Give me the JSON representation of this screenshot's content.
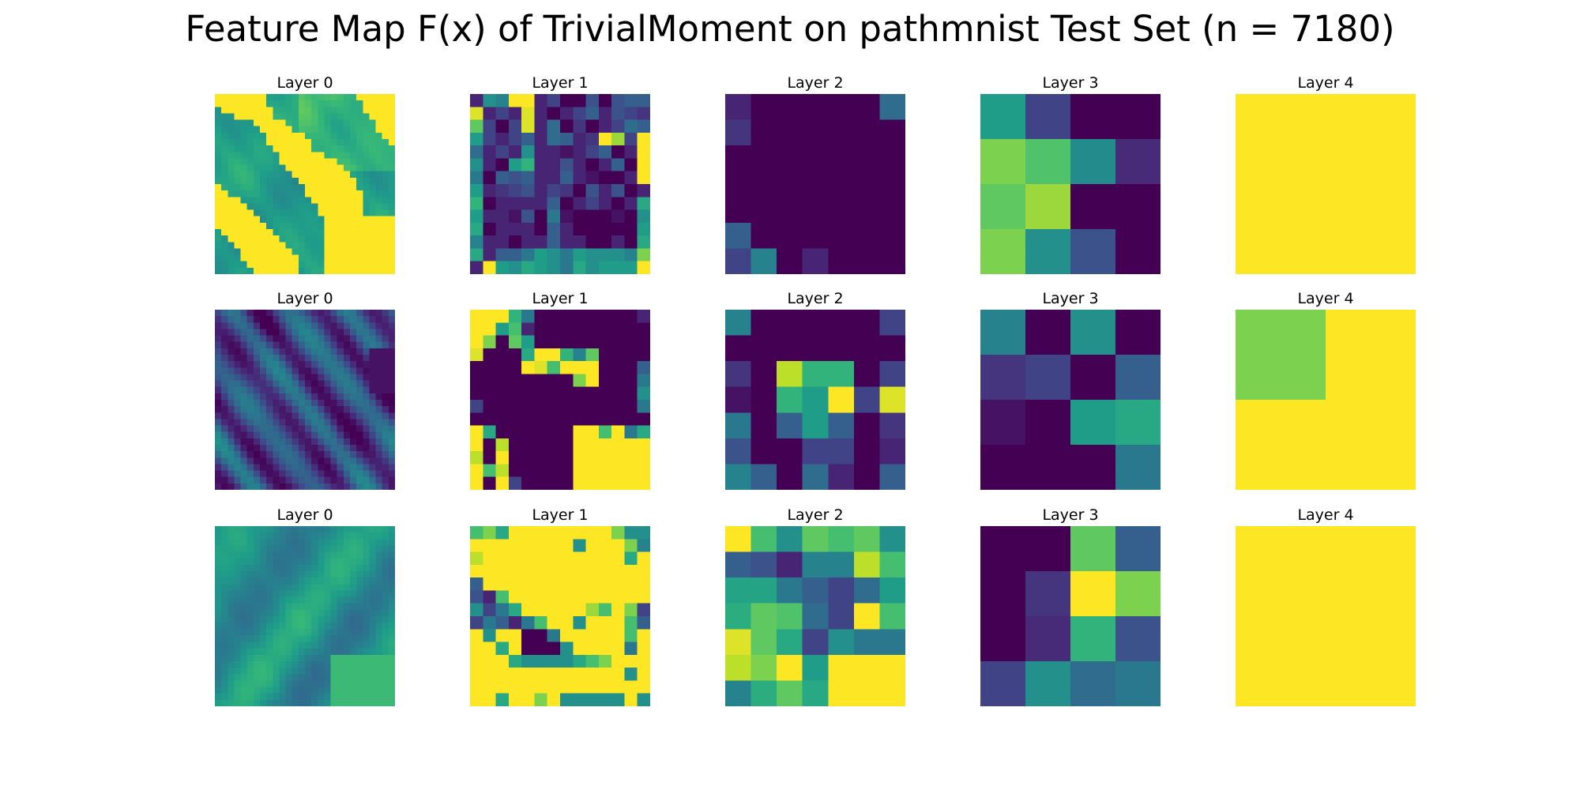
{
  "title": "Feature Map F(x) of TrivialMoment on pathmnist Test Set (n = 7180)",
  "colormap": "viridis",
  "chart_data": {
    "type": "heatmap",
    "title": "Feature Map F(x) of TrivialMoment on pathmnist Test Set (n = 7180)",
    "rows": 3,
    "cols": 5,
    "colorscale": "viridis",
    "value_range": [
      0,
      1
    ],
    "panels": [
      {
        "title": "Layer 0",
        "row": 0,
        "col": 0,
        "size": 28,
        "pattern": "r0l0"
      },
      {
        "title": "Layer 1",
        "row": 0,
        "col": 1,
        "size": 14,
        "values": [
          [
            0.1,
            0.5,
            0.45,
            1,
            1,
            0.1,
            0.2,
            0,
            0,
            0.25,
            0.0,
            0.25,
            0.3,
            0.3
          ],
          [
            0.95,
            0.1,
            0.2,
            0.1,
            0.95,
            0.1,
            0,
            0.1,
            0.2,
            0.3,
            0.1,
            0.25,
            0.2,
            0.15
          ],
          [
            0.75,
            0.2,
            0.0,
            0.2,
            0.95,
            0.1,
            0.35,
            0,
            0.15,
            0.0,
            0.1,
            0.2,
            0.35,
            0.3
          ],
          [
            0.55,
            0.2,
            0.1,
            0.2,
            0.3,
            0.1,
            0.35,
            0.3,
            0.1,
            0.15,
            1,
            0.85,
            0.2,
            1
          ],
          [
            0.35,
            0.1,
            0.2,
            0.1,
            0.5,
            0.1,
            0.1,
            0.05,
            0.1,
            0.2,
            0.3,
            0.0,
            0.1,
            1
          ],
          [
            0.5,
            0.1,
            0.0,
            0.55,
            0.65,
            0.1,
            0.1,
            0.25,
            0.1,
            0.0,
            0.1,
            0.3,
            0.0,
            1
          ],
          [
            0.4,
            0.0,
            0.3,
            0.25,
            0.3,
            0.1,
            0.1,
            0.3,
            0.1,
            0.05,
            0,
            0,
            0.1,
            1
          ],
          [
            0.55,
            0.1,
            0.15,
            0.2,
            0.25,
            0.1,
            0.2,
            0.15,
            0.0,
            0.25,
            0.1,
            0.25,
            0.0,
            0.1
          ],
          [
            0.65,
            0.0,
            0.1,
            0.1,
            0.1,
            0.1,
            0.3,
            0.0,
            0.1,
            0.2,
            0.1,
            0.0,
            0.1,
            0.6
          ],
          [
            0.55,
            0.1,
            0.1,
            0.05,
            0.25,
            0.0,
            0.4,
            0.05,
            0,
            0,
            0,
            0.05,
            0.0,
            0.5
          ],
          [
            0.6,
            0.0,
            0.1,
            0.1,
            0.1,
            0.0,
            0.3,
            0.1,
            0,
            0,
            0,
            0,
            0.0,
            0.55
          ],
          [
            0.45,
            0.1,
            0.1,
            0.0,
            0.1,
            0.1,
            0.3,
            0.1,
            0.1,
            0,
            0,
            0.1,
            0.0,
            0.6
          ],
          [
            0.6,
            0.1,
            0.3,
            0.3,
            0.4,
            0.55,
            0.5,
            0.4,
            0.55,
            0.5,
            0.5,
            0.5,
            0.45,
            0.8
          ],
          [
            0.1,
            1,
            0.55,
            0.5,
            0.6,
            0.55,
            0.5,
            0.4,
            0.6,
            0.5,
            0.55,
            0.55,
            0.55,
            1
          ]
        ]
      },
      {
        "title": "Layer 2",
        "row": 0,
        "col": 2,
        "size": 7,
        "values": [
          [
            0.1,
            0,
            0,
            0,
            0,
            0,
            0.35
          ],
          [
            0.15,
            0,
            0,
            0,
            0,
            0,
            0
          ],
          [
            0,
            0,
            0,
            0,
            0,
            0,
            0
          ],
          [
            0,
            0,
            0,
            0,
            0,
            0,
            0
          ],
          [
            0,
            0,
            0,
            0,
            0,
            0,
            0
          ],
          [
            0.3,
            0,
            0,
            0,
            0,
            0,
            0
          ],
          [
            0.2,
            0.45,
            0,
            0.1,
            0,
            0,
            0
          ]
        ]
      },
      {
        "title": "Layer 3",
        "row": 0,
        "col": 3,
        "size": 4,
        "values": [
          [
            0.55,
            0.2,
            0,
            0
          ],
          [
            0.8,
            0.72,
            0.48,
            0.12
          ],
          [
            0.75,
            0.85,
            0,
            0
          ],
          [
            0.8,
            0.5,
            0.25,
            0
          ]
        ]
      },
      {
        "title": "Layer 4",
        "row": 0,
        "col": 4,
        "size": 1,
        "values": [
          [
            1
          ]
        ]
      },
      {
        "title": "Layer 0",
        "row": 1,
        "col": 0,
        "size": 28,
        "pattern": "r1l0"
      },
      {
        "title": "Layer 1",
        "row": 1,
        "col": 1,
        "size": 14,
        "values": [
          [
            1,
            1,
            1,
            0.65,
            0.4,
            0,
            0,
            0,
            0,
            0,
            0,
            0,
            0,
            0.1
          ],
          [
            1,
            1,
            0.55,
            0.7,
            0.1,
            0,
            0,
            0,
            0,
            0,
            0,
            0,
            0,
            0
          ],
          [
            1,
            0.8,
            0,
            0.75,
            0.55,
            0,
            0,
            0,
            0,
            0,
            0,
            0,
            0,
            0
          ],
          [
            0.95,
            0,
            0,
            0,
            0.6,
            1,
            1,
            0.65,
            0.45,
            0.75,
            0,
            0,
            0,
            0
          ],
          [
            0,
            0,
            0,
            0,
            1,
            0.95,
            0.7,
            1,
            1,
            1,
            0,
            0,
            0,
            0.3
          ],
          [
            0,
            0,
            0,
            0,
            0,
            0,
            0,
            0,
            0.8,
            1,
            0,
            0,
            0,
            0.4
          ],
          [
            0,
            0,
            0,
            0,
            0,
            0,
            0,
            0,
            0,
            0,
            0,
            0,
            0,
            0.5
          ],
          [
            0.2,
            0,
            0,
            0,
            0,
            0,
            0,
            0,
            0,
            0,
            0,
            0,
            0,
            0.4
          ],
          [
            0,
            0,
            0,
            0,
            0,
            0,
            0,
            0,
            0,
            0,
            0,
            0,
            0,
            0
          ],
          [
            1,
            0.6,
            0,
            0,
            0,
            0,
            0,
            0,
            1,
            1,
            0.7,
            1,
            0.4,
            0.6
          ],
          [
            1,
            0,
            0.9,
            0,
            0,
            0,
            0,
            0,
            1,
            1,
            1,
            1,
            1,
            1
          ],
          [
            0.9,
            0,
            1,
            0,
            0,
            0,
            0,
            0,
            1,
            1,
            1,
            1,
            1,
            1
          ],
          [
            1,
            0.7,
            0.9,
            0,
            0,
            0,
            0,
            0,
            1,
            1,
            1,
            1,
            1,
            1
          ],
          [
            1,
            0,
            1,
            0.2,
            0,
            0,
            0,
            0,
            1,
            1,
            1,
            1,
            1,
            1
          ]
        ]
      },
      {
        "title": "Layer 2",
        "row": 1,
        "col": 2,
        "size": 7,
        "values": [
          [
            0.45,
            0,
            0,
            0,
            0,
            0,
            0.2
          ],
          [
            0,
            0,
            0,
            0,
            0,
            0,
            0
          ],
          [
            0.15,
            0,
            0.9,
            0.65,
            0.65,
            0,
            0.2
          ],
          [
            0.05,
            0,
            0.65,
            0.55,
            1,
            0.2,
            0.95
          ],
          [
            0.4,
            0,
            0.3,
            0.55,
            0.3,
            0,
            0.15
          ],
          [
            0.25,
            0,
            0,
            0.2,
            0.2,
            0,
            0.1
          ],
          [
            0.45,
            0.3,
            0,
            0.35,
            0.1,
            0,
            0.3
          ]
        ]
      },
      {
        "title": "Layer 3",
        "row": 1,
        "col": 3,
        "size": 4,
        "values": [
          [
            0.45,
            0,
            0.5,
            0
          ],
          [
            0.15,
            0.2,
            0,
            0.3
          ],
          [
            0.05,
            0,
            0.55,
            0.6
          ],
          [
            0,
            0,
            0,
            0.4
          ]
        ]
      },
      {
        "title": "Layer 4",
        "row": 1,
        "col": 4,
        "size": 2,
        "values": [
          [
            0.8,
            1
          ],
          [
            1,
            1
          ]
        ]
      },
      {
        "title": "Layer 0",
        "row": 2,
        "col": 0,
        "size": 28,
        "pattern": "r2l0"
      },
      {
        "title": "Layer 1",
        "row": 2,
        "col": 1,
        "size": 14,
        "values": [
          [
            0.7,
            0.8,
            0.6,
            1,
            1,
            1,
            1,
            1,
            1,
            1,
            1,
            0.8,
            0.5,
            0.5
          ],
          [
            1,
            1,
            1,
            1,
            1,
            1,
            1,
            1,
            0.5,
            1,
            1,
            1,
            0.8,
            0.45
          ],
          [
            0.9,
            1,
            1,
            1,
            1,
            1,
            1,
            1,
            1,
            1,
            1,
            1,
            0.6,
            1
          ],
          [
            1,
            1,
            1,
            1,
            1,
            1,
            1,
            1,
            1,
            1,
            1,
            1,
            1,
            1
          ],
          [
            0.3,
            1,
            1,
            1,
            1,
            1,
            1,
            1,
            1,
            1,
            1,
            1,
            1,
            1
          ],
          [
            0.25,
            0.1,
            0.7,
            1,
            1,
            1,
            1,
            1,
            1,
            1,
            1,
            1,
            1,
            1
          ],
          [
            0.5,
            0.2,
            0.4,
            0.6,
            1,
            1,
            1,
            1,
            1,
            0.85,
            0.7,
            1,
            0.8,
            0.2
          ],
          [
            0.2,
            0.4,
            0.3,
            0.1,
            0.4,
            0.7,
            1,
            1,
            0.5,
            1,
            1,
            1,
            0.7,
            0.3
          ],
          [
            1,
            0.5,
            1,
            1,
            0,
            0,
            0.4,
            1,
            1,
            1,
            1,
            1,
            0.7,
            1
          ],
          [
            1,
            1,
            0.6,
            1,
            0,
            0,
            0,
            0.5,
            1,
            1,
            1,
            1,
            0.4,
            1
          ],
          [
            1,
            1,
            1,
            0.6,
            0.5,
            0.5,
            0.5,
            0.5,
            0.6,
            0.7,
            0.8,
            1,
            1,
            1
          ],
          [
            1,
            1,
            1,
            1,
            1,
            1,
            1,
            1,
            1,
            1,
            1,
            1,
            0.5,
            1
          ],
          [
            1,
            1,
            1,
            1,
            1,
            1,
            1,
            1,
            1,
            1,
            1,
            1,
            1,
            1
          ],
          [
            1,
            1,
            0.6,
            1,
            1,
            0.8,
            1,
            0.5,
            0.5,
            0.5,
            0.5,
            0.5,
            1,
            0.5
          ]
        ]
      },
      {
        "title": "Layer 2",
        "row": 2,
        "col": 2,
        "size": 7,
        "values": [
          [
            1,
            0.7,
            0.5,
            0.75,
            0.7,
            0.75,
            0.5
          ],
          [
            0.3,
            0.25,
            0.1,
            0.45,
            0.45,
            0.9,
            0.7
          ],
          [
            0.58,
            0.58,
            0.4,
            0.3,
            0.2,
            0.35,
            0.55
          ],
          [
            0.62,
            0.75,
            0.72,
            0.35,
            0.2,
            1,
            0.7
          ],
          [
            0.95,
            0.75,
            0.6,
            0.2,
            0.5,
            0.4,
            0.4
          ],
          [
            0.9,
            0.8,
            1,
            0.55,
            1,
            1,
            1
          ],
          [
            0.45,
            0.62,
            0.75,
            0.6,
            1,
            1,
            1
          ]
        ]
      },
      {
        "title": "Layer 3",
        "row": 2,
        "col": 3,
        "size": 4,
        "values": [
          [
            0,
            0,
            0.75,
            0.3
          ],
          [
            0,
            0.15,
            1,
            0.8
          ],
          [
            0,
            0.12,
            0.65,
            0.25
          ],
          [
            0.2,
            0.5,
            0.35,
            0.4
          ]
        ]
      },
      {
        "title": "Layer 4",
        "row": 2,
        "col": 4,
        "size": 1,
        "values": [
          [
            1
          ]
        ]
      }
    ]
  }
}
